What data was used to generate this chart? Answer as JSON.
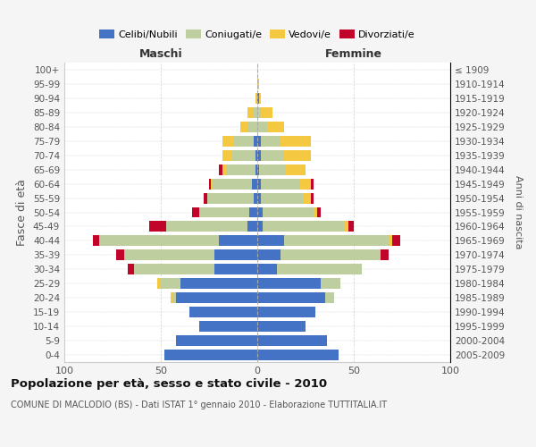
{
  "age_groups": [
    "100+",
    "95-99",
    "90-94",
    "85-89",
    "80-84",
    "75-79",
    "70-74",
    "65-69",
    "60-64",
    "55-59",
    "50-54",
    "45-49",
    "40-44",
    "35-39",
    "30-34",
    "25-29",
    "20-24",
    "15-19",
    "10-14",
    "5-9",
    "0-4"
  ],
  "birth_years": [
    "≤ 1909",
    "1910-1914",
    "1915-1919",
    "1920-1924",
    "1925-1929",
    "1930-1934",
    "1935-1939",
    "1940-1944",
    "1945-1949",
    "1950-1954",
    "1955-1959",
    "1960-1964",
    "1965-1969",
    "1970-1974",
    "1975-1979",
    "1980-1984",
    "1985-1989",
    "1990-1994",
    "1995-1999",
    "2000-2004",
    "2005-2009"
  ],
  "maschi": {
    "celibi": [
      0,
      0,
      0,
      0,
      0,
      2,
      1,
      1,
      3,
      2,
      4,
      5,
      20,
      22,
      22,
      40,
      42,
      35,
      30,
      42,
      48
    ],
    "coniugati": [
      0,
      0,
      0,
      2,
      5,
      10,
      12,
      15,
      20,
      24,
      26,
      42,
      62,
      47,
      42,
      10,
      2,
      0,
      0,
      0,
      0
    ],
    "vedovi": [
      0,
      0,
      1,
      3,
      4,
      6,
      5,
      2,
      1,
      0,
      0,
      0,
      0,
      0,
      0,
      2,
      1,
      0,
      0,
      0,
      0
    ],
    "divorziati": [
      0,
      0,
      0,
      0,
      0,
      0,
      0,
      2,
      1,
      2,
      4,
      9,
      3,
      4,
      3,
      0,
      0,
      0,
      0,
      0,
      0
    ]
  },
  "femmine": {
    "nubili": [
      0,
      0,
      1,
      0,
      0,
      2,
      2,
      1,
      2,
      2,
      3,
      3,
      14,
      12,
      10,
      33,
      35,
      30,
      25,
      36,
      42
    ],
    "coniugate": [
      0,
      0,
      0,
      2,
      5,
      10,
      12,
      14,
      20,
      22,
      26,
      42,
      54,
      52,
      44,
      10,
      5,
      0,
      0,
      0,
      0
    ],
    "vedove": [
      0,
      1,
      1,
      6,
      9,
      16,
      14,
      10,
      6,
      4,
      2,
      2,
      2,
      0,
      0,
      0,
      0,
      0,
      0,
      0,
      0
    ],
    "divorziate": [
      0,
      0,
      0,
      0,
      0,
      0,
      0,
      0,
      1,
      1,
      2,
      3,
      4,
      4,
      0,
      0,
      0,
      0,
      0,
      0,
      0
    ]
  },
  "colors": {
    "celibi_nubili": "#4472C4",
    "coniugati": "#BFCE9E",
    "vedovi": "#F5C842",
    "divorziati": "#C0042A"
  },
  "xlim": 100,
  "title": "Popolazione per età, sesso e stato civile - 2010",
  "subtitle": "COMUNE DI MACLODIO (BS) - Dati ISTAT 1° gennaio 2010 - Elaborazione TUTTITALIA.IT",
  "ylabel_left": "Fasce di età",
  "ylabel_right": "Anni di nascita",
  "xlabel_maschi": "Maschi",
  "xlabel_femmine": "Femmine",
  "legend_labels": [
    "Celibi/Nubili",
    "Coniugati/e",
    "Vedovi/e",
    "Divorziati/e"
  ],
  "bg_color": "#f5f5f5",
  "plot_bg": "#ffffff"
}
